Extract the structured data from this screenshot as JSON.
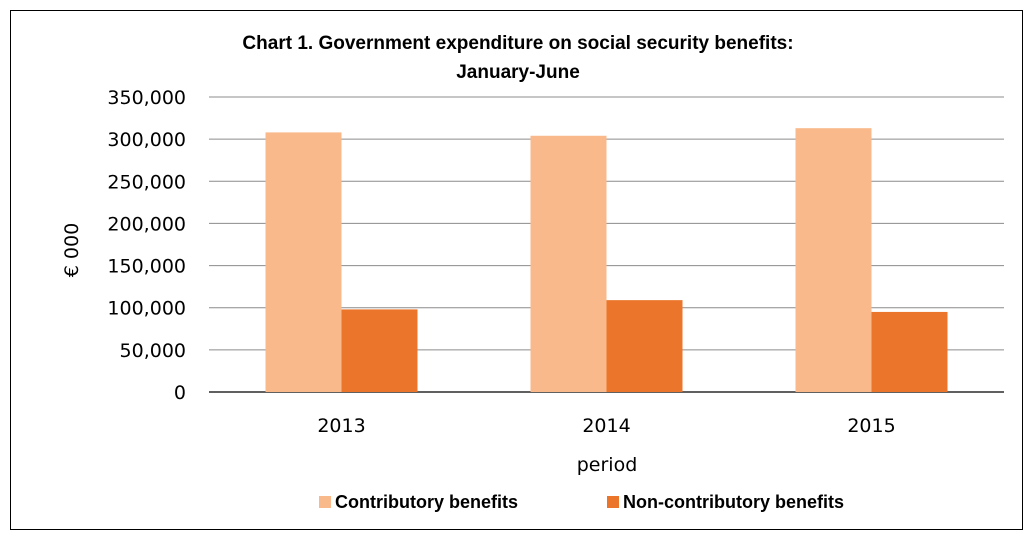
{
  "chart_data": {
    "type": "bar",
    "title_line1": "Chart 1.  Government expenditure on social security benefits:",
    "title_line2": "January-June",
    "xlabel": "period",
    "ylabel": "€ 000",
    "categories": [
      "2013",
      "2014",
      "2015"
    ],
    "series": [
      {
        "name": "Contributory benefits",
        "color": "#F9B98A",
        "values": [
          308000,
          304000,
          313000
        ]
      },
      {
        "name": "Non-contributory benefits",
        "color": "#EB762B",
        "values": [
          98000,
          109000,
          95000
        ]
      }
    ],
    "ylim": [
      0,
      350000
    ],
    "yticks": [
      0,
      50000,
      100000,
      150000,
      200000,
      250000,
      300000,
      350000
    ],
    "ytick_labels": [
      "0",
      "50,000",
      "100,000",
      "150,000",
      "200,000",
      "250,000",
      "300,000",
      "350,000"
    ],
    "grid": true,
    "legend_position": "bottom"
  }
}
